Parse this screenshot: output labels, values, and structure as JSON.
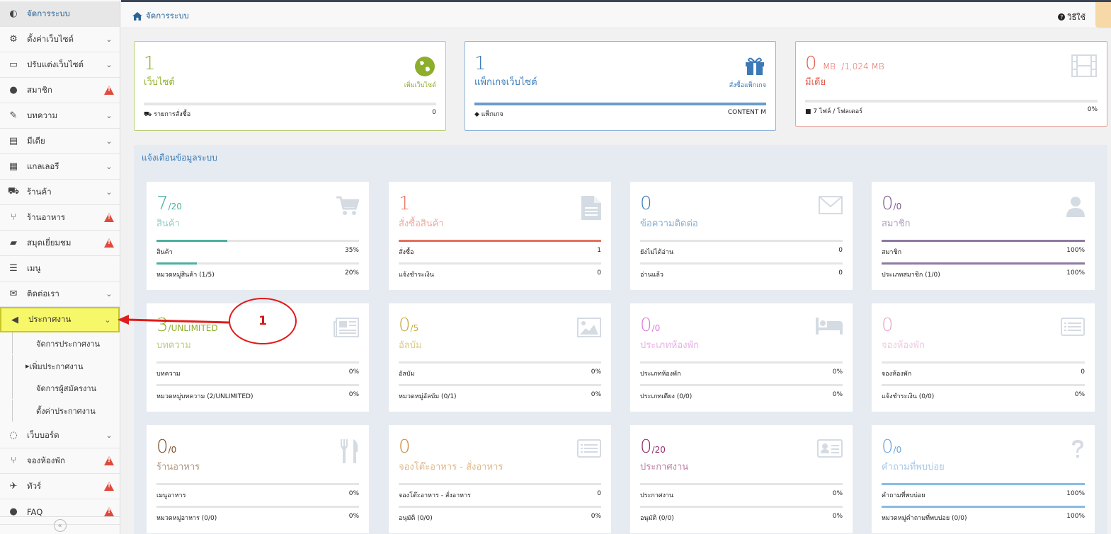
{
  "sidebar": {
    "items": [
      {
        "label": "จัดการระบบ",
        "icon": "dashboard-icon",
        "glyph": "◐",
        "chevron": false,
        "warn": false
      },
      {
        "label": "ตั้งค่าเว็บไซต์",
        "icon": "gear-icon",
        "glyph": "⚙",
        "chevron": true,
        "warn": false
      },
      {
        "label": "ปรับแต่งเว็บไซต์",
        "icon": "monitor-icon",
        "glyph": "▭",
        "chevron": true,
        "warn": false
      },
      {
        "label": "สมาชิก",
        "icon": "user-icon",
        "glyph": "●",
        "chevron": false,
        "warn": true
      },
      {
        "label": "บทความ",
        "icon": "edit-icon",
        "glyph": "✎",
        "chevron": true,
        "warn": false
      },
      {
        "label": "มีเดีย",
        "icon": "film-icon",
        "glyph": "▤",
        "chevron": true,
        "warn": false
      },
      {
        "label": "แกลเลอรี",
        "icon": "grid-icon",
        "glyph": "▦",
        "chevron": true,
        "warn": false
      },
      {
        "label": "ร้านค้า",
        "icon": "cart-icon",
        "glyph": "⛟",
        "chevron": true,
        "warn": false
      },
      {
        "label": "ร้านอาหาร",
        "icon": "cutlery-icon",
        "glyph": "⑂",
        "chevron": false,
        "warn": true
      },
      {
        "label": "สมุดเยี่ยมชม",
        "icon": "book-icon",
        "glyph": "▰",
        "chevron": false,
        "warn": true
      },
      {
        "label": "เมนู",
        "icon": "menu-list-icon",
        "glyph": "☰",
        "chevron": false,
        "warn": false
      },
      {
        "label": "ติดต่อเรา",
        "icon": "envelope-icon",
        "glyph": "✉",
        "chevron": true,
        "warn": false
      },
      {
        "label": "ประกาศงาน",
        "icon": "megaphone-icon",
        "glyph": "◀",
        "chevron": true,
        "warn": false
      }
    ],
    "sub_items": [
      "จัดการประกาศงาน",
      "เพิ่มประกาศงาน",
      "จัดการผู้สมัครงาน",
      "ตั้งค่าประกาศงาน"
    ],
    "items_after": [
      {
        "label": "เว็บบอร์ด",
        "icon": "comments-icon",
        "glyph": "◌",
        "chevron": true,
        "warn": false
      },
      {
        "label": "จองห้องพัก",
        "icon": "cutlery-icon",
        "glyph": "⑂",
        "chevron": false,
        "warn": true
      },
      {
        "label": "ทัวร์",
        "icon": "plane-icon",
        "glyph": "✈",
        "chevron": false,
        "warn": true
      },
      {
        "label": "FAQ",
        "icon": "info-icon",
        "glyph": "●",
        "chevron": false,
        "warn": true
      }
    ]
  },
  "header": {
    "breadcrumb": "จัดการระบบ",
    "help": "วิธีใช้"
  },
  "top_cards": [
    {
      "num": "1",
      "unit": "",
      "total": "",
      "label": "เว็บไซต์",
      "link": "เพิ่มเว็บไซต์",
      "foot_label": "รายการสั่งซื้อ",
      "foot_value": "0",
      "color": "#8dae2b",
      "border": "#b8cf7a",
      "icon": "globe-icon"
    },
    {
      "num": "1",
      "unit": "",
      "total": "",
      "label": "แพ็กเกจเว็บไซต์",
      "link": "สั่งซื้อแพ็กเกจ",
      "foot_label": "แพ็กเกจ",
      "foot_value": "CONTENT M",
      "color": "#3a7ab7",
      "border": "#8fb4d8",
      "icon": "gift-icon"
    },
    {
      "num": "0",
      "unit": "MB",
      "total": "/1,024 MB",
      "label": "มีเดีย",
      "link": "",
      "foot_label": "7 ไฟล์ / โฟลเดอร์",
      "foot_value": "0%",
      "color": "#e15b4e",
      "border": "#e7a29a",
      "icon": "film-icon"
    }
  ],
  "panel_title": "แจ้งเตือนข้อมูลระบบ",
  "cards": [
    {
      "num": "7",
      "sub": "/20",
      "label": "สินค้า",
      "color": "#4caf9f",
      "icon": "cart-icon",
      "rows": [
        {
          "l": "สินค้า",
          "v": "35%",
          "fill": 0.35,
          "fc": "#4caf9f"
        },
        {
          "l": "หมวดหมู่สินค้า (1/5)",
          "v": "20%",
          "fill": 0.2,
          "fc": "#4caf9f"
        }
      ]
    },
    {
      "num": "1",
      "sub": "",
      "label": "สั่งซื้อสินค้า",
      "color": "#e5705e",
      "icon": "file-icon",
      "rows": [
        {
          "l": "สั่งซื้อ",
          "v": "1",
          "fill": 1,
          "fc": "#e5705e"
        },
        {
          "l": "แจ้งชำระเงิน",
          "v": "0",
          "fill": 0,
          "fc": "#e5705e"
        }
      ]
    },
    {
      "num": "0",
      "sub": "",
      "label": "ข้อความติดต่อ",
      "color": "#3a7ab7",
      "icon": "envelope-icon",
      "rows": [
        {
          "l": "ยังไม่ได้อ่าน",
          "v": "0",
          "fill": 0,
          "fc": "#3a7ab7"
        },
        {
          "l": "อ่านแล้ว",
          "v": "0",
          "fill": 0,
          "fc": "#3a7ab7"
        }
      ]
    },
    {
      "num": "0",
      "sub": "/0",
      "label": "สมาชิก",
      "color": "#7d5e8e",
      "icon": "user-icon",
      "rows": [
        {
          "l": "สมาชิก",
          "v": "100%",
          "fill": 1,
          "fc": "#8e79a0"
        },
        {
          "l": "ประเภทสมาชิก (1/0)",
          "v": "100%",
          "fill": 1,
          "fc": "#8e79a0"
        }
      ]
    },
    {
      "num": "3",
      "sub": "/UNLIMITED",
      "label": "บทความ",
      "color": "#8dae2b",
      "icon": "newspaper-icon",
      "rows": [
        {
          "l": "บทความ",
          "v": "0%",
          "fill": 0,
          "fc": "#8dae2b"
        },
        {
          "l": "หมวดหมู่บทความ (2/UNLIMITED)",
          "v": "0%",
          "fill": 0,
          "fc": "#8dae2b"
        }
      ]
    },
    {
      "num": "0",
      "sub": "/5",
      "label": "อัลบัม",
      "color": "#c9a93a",
      "icon": "image-icon",
      "rows": [
        {
          "l": "อัลบัม",
          "v": "0%",
          "fill": 0,
          "fc": "#c9a93a"
        },
        {
          "l": "หมวดหมู่อัลบัม (0/1)",
          "v": "0%",
          "fill": 0,
          "fc": "#c9a93a"
        }
      ]
    },
    {
      "num": "0",
      "sub": "/0",
      "label": "ประเภทห้องพัก",
      "color": "#d97ad9",
      "icon": "bed-icon",
      "rows": [
        {
          "l": "ประเภทห้องพัก",
          "v": "0%",
          "fill": 0,
          "fc": "#d97ad9"
        },
        {
          "l": "ประเภทเตียง (0/0)",
          "v": "0%",
          "fill": 0,
          "fc": "#d97ad9"
        }
      ]
    },
    {
      "num": "0",
      "sub": "",
      "label": "จองห้องพัก",
      "color": "#e8a3c9",
      "icon": "list-icon",
      "rows": [
        {
          "l": "จองห้องพัก",
          "v": "0",
          "fill": 0,
          "fc": "#e8a3c9"
        },
        {
          "l": "แจ้งชำระเงิน (0/0)",
          "v": "0%",
          "fill": 0,
          "fc": "#e8a3c9"
        }
      ]
    },
    {
      "num": "0",
      "sub": "/0",
      "label": "ร้านอาหาร",
      "color": "#7a4e2a",
      "icon": "cutlery-icon",
      "rows": [
        {
          "l": "เมนูอาหาร",
          "v": "0%",
          "fill": 0,
          "fc": "#7a4e2a"
        },
        {
          "l": "หมวดหมู่อาหาร (0/0)",
          "v": "0%",
          "fill": 0,
          "fc": "#7a4e2a"
        }
      ]
    },
    {
      "num": "0",
      "sub": "",
      "label": "จองโต๊ะอาหาร - สั่งอาหาร",
      "color": "#c98a3a",
      "icon": "list-alt-icon",
      "rows": [
        {
          "l": "จองโต๊ะอาหาร - สั่งอาหาร",
          "v": "0",
          "fill": 0,
          "fc": "#c98a3a"
        },
        {
          "l": "อนุมัติ (0/0)",
          "v": "0%",
          "fill": 0,
          "fc": "#c98a3a"
        }
      ]
    },
    {
      "num": "0",
      "sub": "/20",
      "label": "ประกาศงาน",
      "color": "#8e2a6a",
      "icon": "id-card-icon",
      "rows": [
        {
          "l": "ประกาศงาน",
          "v": "0%",
          "fill": 0,
          "fc": "#8e2a6a"
        },
        {
          "l": "อนุมัติ (0/0)",
          "v": "0%",
          "fill": 0,
          "fc": "#8e2a6a"
        }
      ]
    },
    {
      "num": "0",
      "sub": "/0",
      "label": "คำถามที่พบบ่อย",
      "color": "#6aa4d8",
      "icon": "question-icon",
      "rows": [
        {
          "l": "คำถามที่พบบ่อย",
          "v": "100%",
          "fill": 1,
          "fc": "#86bce6"
        },
        {
          "l": "หมวดหมู่คำถามที่พบบ่อย (0/0)",
          "v": "100%",
          "fill": 1,
          "fc": "#86bce6"
        }
      ]
    }
  ],
  "annotation": {
    "number": "1",
    "color": "#e01b1b"
  }
}
